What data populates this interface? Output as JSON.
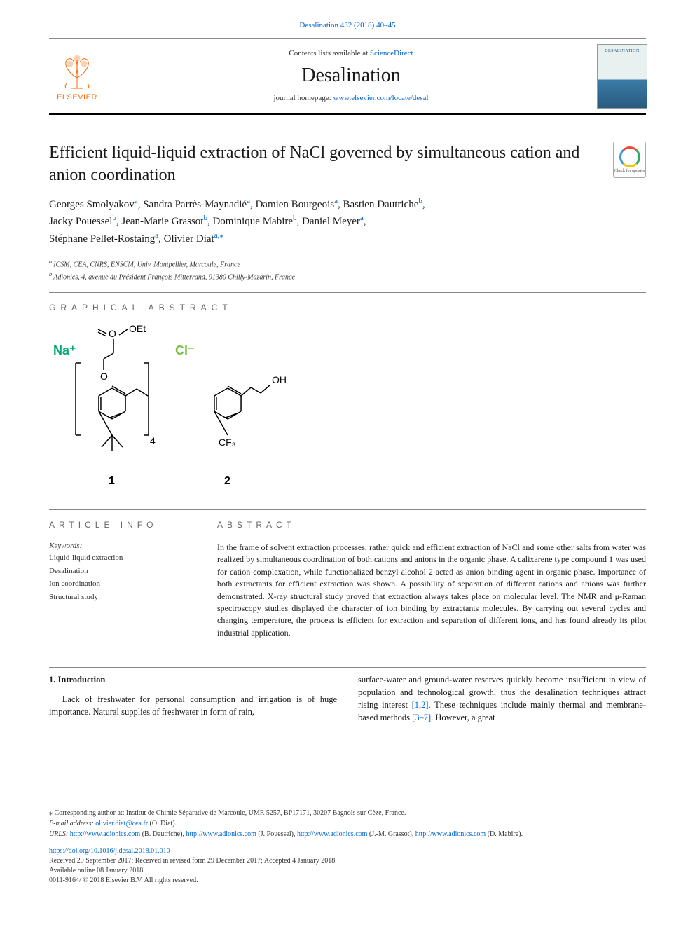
{
  "citation": "Desalination 432 (2018) 40–45",
  "lists_available_pre": "Contents lists available at ",
  "lists_available_link": "ScienceDirect",
  "journal_title": "Desalination",
  "homepage_pre": "journal homepage: ",
  "homepage_link": "www.elsevier.com/locate/desal",
  "publisher_logo_text": "ELSEVIER",
  "cover_label": "DESALINATION",
  "crossmark_text": "Check for updates",
  "article_title": "Efficient liquid-liquid extraction of NaCl governed by simultaneous cation and anion coordination",
  "authors_struct": [
    {
      "name": "Georges Smolyakov",
      "aff": "a"
    },
    {
      "name": "Sandra Parrès-Maynadié",
      "aff": "a"
    },
    {
      "name": "Damien Bourgeois",
      "aff": "a"
    },
    {
      "name": "Bastien Dautriche",
      "aff": "b"
    },
    {
      "name": "Jacky Pouessel",
      "aff": "b"
    },
    {
      "name": "Jean-Marie Grassot",
      "aff": "b"
    },
    {
      "name": "Dominique Mabire",
      "aff": "b"
    },
    {
      "name": "Daniel Meyer",
      "aff": "a"
    },
    {
      "name": "Stéphane Pellet-Rostaing",
      "aff": "a"
    },
    {
      "name": "Olivier Diat",
      "aff": "a,⁎"
    }
  ],
  "affiliations": [
    {
      "label": "a",
      "text": "ICSM, CEA, CNRS, ENSCM, Univ. Montpellier, Marcoule, France"
    },
    {
      "label": "b",
      "text": "Adionics, 4, avenue du Président François Mitterrand, 91380 Chilly-Mazarin, France"
    }
  ],
  "graphical_abstract_heading": "GRAPHICAL ABSTRACT",
  "ga_labels": {
    "na": "Na⁺",
    "cl": "Cl⁻",
    "oet": "OEt",
    "oh": "OH",
    "cf3": "CF₃",
    "one": "1",
    "two": "2",
    "bracket_sub": "4",
    "o1": "O",
    "o2": "O"
  },
  "ga_colors": {
    "bond": "#000000",
    "na": "#00a878",
    "cl": "#7bc043"
  },
  "article_info_heading": "ARTICLE INFO",
  "keywords_label": "Keywords:",
  "keywords": [
    "Liquid-liquid extraction",
    "Desalination",
    "Ion coordination",
    "Structural study"
  ],
  "abstract_heading": "ABSTRACT",
  "abstract_text": "In the frame of solvent extraction processes, rather quick and efficient extraction of NaCl and some other salts from water was realized by simultaneous coordination of both cations and anions in the organic phase. A calixarene type compound 1 was used for cation complexation, while functionalized benzyl alcohol 2 acted as anion binding agent in organic phase. Importance of both extractants for efficient extraction was shown. A possibility of separation of different cations and anions was further demonstrated. X-ray structural study proved that extraction always takes place on molecular level. The NMR and μ-Raman spectroscopy studies displayed the character of ion binding by extractants molecules. By carrying out several cycles and changing temperature, the process is efficient for extraction and separation of different ions, and has found already its pilot industrial application.",
  "introduction_heading": "1. Introduction",
  "intro_col1": "Lack of freshwater for personal consumption and irrigation is of huge importance. Natural supplies of freshwater in form of rain,",
  "intro_col2_pre": "surface-water and ground-water reserves quickly become insufficient in view of population and technological growth, thus the desalination techniques attract rising interest ",
  "intro_ref1": "[1,2]",
  "intro_col2_mid": ". These techniques include mainly thermal and membrane-based methods ",
  "intro_ref2": "[3–7]",
  "intro_col2_post": ". However, a great",
  "footnote_corr": "⁎ Corresponding author at: Institut de Chimie Séparative de Marcoule, UMR 5257, BP17171, 30207 Bagnols sur Cèze, France.",
  "footnote_email_label": "E-mail address: ",
  "footnote_email": "olivier.diat@cea.fr",
  "footnote_email_person": " (O. Diat).",
  "footnote_urls_label": "URLS: ",
  "footnote_urls": [
    {
      "url": "http://www.adionics.com",
      "person": " (B. Dautriche), "
    },
    {
      "url": "http://www.adionics.com",
      "person": " (J. Pouessel), "
    },
    {
      "url": "http://www.adionics.com",
      "person": " (J.-M. Grassot), "
    },
    {
      "url": "http://www.adionics.com",
      "person": " (D. Mabire)."
    }
  ],
  "doi": "https://doi.org/10.1016/j.desal.2018.01.010",
  "received_line": "Received 29 September 2017; Received in revised form 29 December 2017; Accepted 4 January 2018",
  "available_line": "Available online 08 January 2018",
  "copyright_line": "0011-9164/ © 2018 Elsevier B.V. All rights reserved."
}
